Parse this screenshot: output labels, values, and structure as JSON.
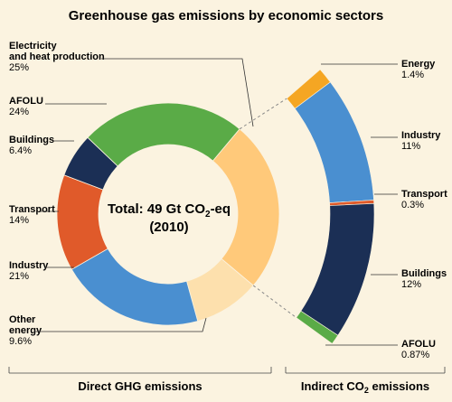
{
  "chart_data": {
    "type": "pie",
    "title": "Greenhouse gas emissions by economic sectors",
    "center_label": {
      "total_prefix": "Total: 49 Gt CO",
      "total_sub": "2",
      "total_suffix": "-eq",
      "year": "(2010)"
    },
    "direct": {
      "caption": "Direct GHG emissions",
      "segments": [
        {
          "name_lines": [
            "Electricity",
            "and heat production"
          ],
          "value_label": "25%",
          "value": 25,
          "color": "#ffc97a"
        },
        {
          "name_lines": [
            "AFOLU"
          ],
          "value_label": "24%",
          "value": 24,
          "color": "#5aab47"
        },
        {
          "name_lines": [
            "Buildings"
          ],
          "value_label": "6.4%",
          "value": 6.4,
          "color": "#1b2f55"
        },
        {
          "name_lines": [
            "Transport"
          ],
          "value_label": "14%",
          "value": 14,
          "color": "#e05a2a"
        },
        {
          "name_lines": [
            "Industry"
          ],
          "value_label": "21%",
          "value": 21,
          "color": "#4a8fd0"
        },
        {
          "name_lines": [
            "Other",
            "energy"
          ],
          "value_label": "9.6%",
          "value": 9.6,
          "color": "#fde0ad"
        }
      ]
    },
    "indirect": {
      "caption_prefix": "Indirect CO",
      "caption_sub": "2",
      "caption_suffix": " emissions",
      "segments": [
        {
          "name": "Energy",
          "value_label": "1.4%",
          "value": 1.4,
          "color": "#f5a623"
        },
        {
          "name": "Industry",
          "value_label": "11%",
          "value": 11,
          "color": "#4a8fd0"
        },
        {
          "name": "Transport",
          "value_label": "0.3%",
          "value": 0.3,
          "color": "#e05a2a"
        },
        {
          "name": "Buildings",
          "value_label": "12%",
          "value": 12,
          "color": "#1b2f55"
        },
        {
          "name": "AFOLU",
          "value_label": "0.87%",
          "value": 0.87,
          "color": "#5aab47"
        }
      ]
    }
  }
}
